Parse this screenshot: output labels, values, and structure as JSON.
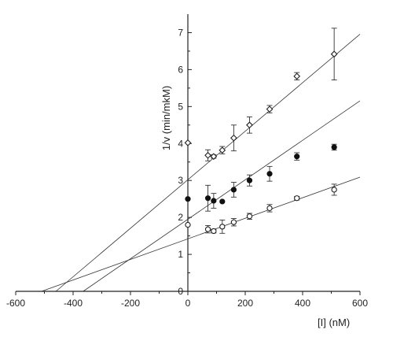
{
  "chart_data": {
    "type": "scatter",
    "xlabel": "[I] (nM)",
    "ylabel": "1/v (min/mkM)",
    "xlim": [
      -600,
      600
    ],
    "ylim": [
      0,
      7.5
    ],
    "x_ticks": [
      -600,
      -400,
      -200,
      0,
      200,
      400,
      600
    ],
    "y_ticks": [
      0,
      1,
      2,
      3,
      4,
      5,
      6,
      7
    ],
    "grid": false,
    "legend": "none",
    "series": [
      {
        "marker": "open-diamond",
        "points": [
          {
            "x": 0,
            "y": 4.02,
            "err": 0
          },
          {
            "x": 70,
            "y": 3.68,
            "err": 0.15
          },
          {
            "x": 90,
            "y": 3.65,
            "err": 0.05
          },
          {
            "x": 120,
            "y": 3.82,
            "err": 0.1
          },
          {
            "x": 160,
            "y": 4.15,
            "err": 0.35
          },
          {
            "x": 215,
            "y": 4.5,
            "err": 0.22
          },
          {
            "x": 285,
            "y": 4.93,
            "err": 0.1
          },
          {
            "x": 380,
            "y": 5.82,
            "err": 0.1
          },
          {
            "x": 510,
            "y": 6.42,
            "err": 0.7
          }
        ],
        "fit": {
          "intercept": 3.02,
          "x_intercept": -460
        }
      },
      {
        "marker": "filled-circle",
        "points": [
          {
            "x": 0,
            "y": 2.5,
            "err": 0
          },
          {
            "x": 70,
            "y": 2.52,
            "err": 0.35
          },
          {
            "x": 90,
            "y": 2.45,
            "err": 0.2
          },
          {
            "x": 120,
            "y": 2.43,
            "err": 0
          },
          {
            "x": 160,
            "y": 2.75,
            "err": 0.2
          },
          {
            "x": 215,
            "y": 3.0,
            "err": 0.15
          },
          {
            "x": 285,
            "y": 3.18,
            "err": 0.2
          },
          {
            "x": 380,
            "y": 3.65,
            "err": 0.1
          },
          {
            "x": 510,
            "y": 3.9,
            "err": 0.08
          }
        ],
        "fit": {
          "intercept": 1.95,
          "x_intercept": -365
        }
      },
      {
        "marker": "open-circle",
        "points": [
          {
            "x": 0,
            "y": 1.8,
            "err": 0
          },
          {
            "x": 70,
            "y": 1.68,
            "err": 0.1
          },
          {
            "x": 90,
            "y": 1.63,
            "err": 0.05
          },
          {
            "x": 120,
            "y": 1.75,
            "err": 0.18
          },
          {
            "x": 160,
            "y": 1.87,
            "err": 0.1
          },
          {
            "x": 215,
            "y": 2.03,
            "err": 0.08
          },
          {
            "x": 285,
            "y": 2.25,
            "err": 0.1
          },
          {
            "x": 380,
            "y": 2.52,
            "err": 0.05
          },
          {
            "x": 510,
            "y": 2.75,
            "err": 0.15
          }
        ],
        "fit": {
          "intercept": 1.42,
          "x_intercept": -510
        }
      }
    ]
  }
}
